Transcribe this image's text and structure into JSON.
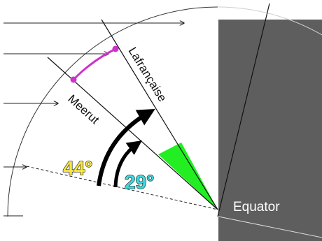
{
  "labels": {
    "city_upper": "Lafrançaise",
    "city_lower": "Meerut",
    "equator": "Equator",
    "angle_large": "44°",
    "angle_small": "29°"
  },
  "colors": {
    "shadow": "#5e5e5e",
    "arc_highlight": "#cc33cc",
    "wedge": "#22ee22",
    "angle_large": "#f5e642",
    "angle_small": "#3ed8de"
  }
}
